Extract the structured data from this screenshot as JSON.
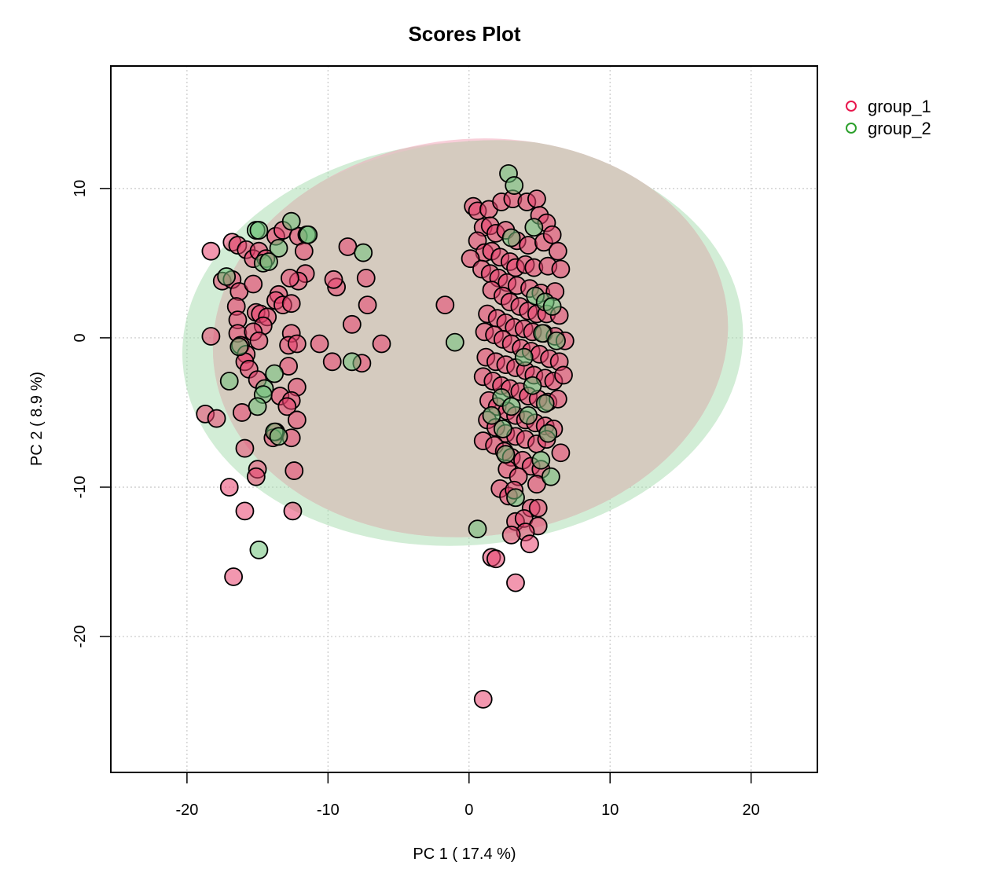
{
  "chart_data": {
    "type": "scatter",
    "title": "Scores Plot",
    "xlabel": "PC 1 ( 17.4 %)",
    "ylabel": "PC 2 ( 8.9 %)",
    "xlim": [
      -25.4,
      24.7
    ],
    "ylim": [
      -29.1,
      18.2
    ],
    "xticks": [
      -20,
      -10,
      0,
      10,
      20
    ],
    "yticks": [
      -20,
      -10,
      0,
      10
    ],
    "xtick_labels": [
      "-20",
      "-10",
      "0",
      "10",
      "20"
    ],
    "ytick_labels": [
      "-20",
      "-10",
      "0",
      "10"
    ],
    "grid": true,
    "legend_position": "top-right-outside",
    "legend": [
      {
        "name": "group_1",
        "color": "#e8174d"
      },
      {
        "name": "group_2",
        "color": "#2ca02c"
      }
    ],
    "confidence_ellipses": [
      {
        "group": "group_1",
        "center": [
          0.1,
          0.0
        ],
        "semi_axes": [
          18.3,
          13.3
        ],
        "rotation_deg": -6,
        "fill": "#f2a0b4"
      },
      {
        "group": "group_2",
        "center": [
          -0.45,
          -0.4
        ],
        "semi_axes": [
          19.9,
          13.5
        ],
        "rotation_deg": -4,
        "fill": "#a6dcae"
      }
    ],
    "series": [
      {
        "name": "group_1",
        "fill": "#e8426e",
        "points": [
          [
            -18.3,
            5.8
          ],
          [
            -16.8,
            6.4
          ],
          [
            -16.4,
            6.2
          ],
          [
            -15.8,
            5.9
          ],
          [
            -15.3,
            5.3
          ],
          [
            -14.9,
            5.8
          ],
          [
            -14.4,
            5.3
          ],
          [
            -13.7,
            6.8
          ],
          [
            -13.2,
            7.2
          ],
          [
            -12.1,
            6.8
          ],
          [
            -11.7,
            5.8
          ],
          [
            -11.6,
            4.3
          ],
          [
            -12.1,
            3.8
          ],
          [
            -12.7,
            4.0
          ],
          [
            -13.5,
            2.9
          ],
          [
            -13.7,
            2.5
          ],
          [
            -13.2,
            2.2
          ],
          [
            -12.6,
            2.3
          ],
          [
            -17.5,
            3.8
          ],
          [
            -16.8,
            3.9
          ],
          [
            -16.3,
            3.1
          ],
          [
            -16.5,
            2.1
          ],
          [
            -16.4,
            1.2
          ],
          [
            -16.4,
            0.3
          ],
          [
            -15.3,
            3.6
          ],
          [
            -15.1,
            1.7
          ],
          [
            -14.8,
            1.6
          ],
          [
            -14.3,
            1.4
          ],
          [
            -14.6,
            0.8
          ],
          [
            -15.3,
            0.4
          ],
          [
            -14.9,
            -0.2
          ],
          [
            -16.2,
            -0.5
          ],
          [
            -15.8,
            -1.1
          ],
          [
            -15.9,
            -1.6
          ],
          [
            -15.6,
            -2.1
          ],
          [
            -15.0,
            -2.8
          ],
          [
            -18.3,
            0.1
          ],
          [
            -12.6,
            0.3
          ],
          [
            -12.8,
            -0.5
          ],
          [
            -12.2,
            -0.4
          ],
          [
            -10.6,
            -0.4
          ],
          [
            -12.8,
            -1.9
          ],
          [
            -9.7,
            -1.6
          ],
          [
            -9.4,
            3.4
          ],
          [
            -9.6,
            3.9
          ],
          [
            -8.6,
            6.1
          ],
          [
            -8.3,
            0.9
          ],
          [
            -7.3,
            4.0
          ],
          [
            -7.2,
            2.2
          ],
          [
            -7.6,
            -1.7
          ],
          [
            -6.2,
            -0.4
          ],
          [
            -1.7,
            2.2
          ],
          [
            -12.2,
            -3.3
          ],
          [
            -13.4,
            -3.9
          ],
          [
            -12.6,
            -4.2
          ],
          [
            -12.9,
            -4.6
          ],
          [
            -12.2,
            -5.5
          ],
          [
            -13.7,
            -6.3
          ],
          [
            -13.9,
            -6.7
          ],
          [
            -12.6,
            -6.7
          ],
          [
            -18.7,
            -5.1
          ],
          [
            -17.9,
            -5.4
          ],
          [
            -16.1,
            -5.0
          ],
          [
            -15.9,
            -7.4
          ],
          [
            -17.0,
            -10.0
          ],
          [
            -15.0,
            -8.8
          ],
          [
            -15.1,
            -9.3
          ],
          [
            -12.4,
            -8.9
          ],
          [
            -15.9,
            -11.6
          ],
          [
            -12.5,
            -11.6
          ],
          [
            -16.7,
            -16.0
          ],
          [
            0.3,
            8.8
          ],
          [
            0.6,
            8.5
          ],
          [
            1.4,
            8.6
          ],
          [
            2.3,
            9.1
          ],
          [
            3.1,
            9.3
          ],
          [
            4.1,
            9.1
          ],
          [
            4.8,
            9.3
          ],
          [
            5.0,
            8.2
          ],
          [
            5.5,
            7.7
          ],
          [
            1.0,
            7.4
          ],
          [
            1.5,
            7.5
          ],
          [
            1.9,
            7.0
          ],
          [
            2.6,
            7.2
          ],
          [
            3.4,
            6.5
          ],
          [
            4.2,
            6.2
          ],
          [
            5.3,
            6.4
          ],
          [
            5.9,
            6.9
          ],
          [
            6.3,
            5.8
          ],
          [
            0.6,
            6.5
          ],
          [
            1.1,
            5.7
          ],
          [
            1.6,
            5.8
          ],
          [
            2.2,
            5.4
          ],
          [
            2.9,
            5.1
          ],
          [
            3.3,
            4.7
          ],
          [
            4.0,
            4.9
          ],
          [
            4.6,
            4.7
          ],
          [
            5.6,
            4.8
          ],
          [
            6.5,
            4.6
          ],
          [
            0.1,
            5.3
          ],
          [
            0.9,
            4.6
          ],
          [
            1.5,
            4.3
          ],
          [
            2.1,
            4.0
          ],
          [
            2.7,
            3.7
          ],
          [
            3.4,
            3.5
          ],
          [
            4.3,
            3.3
          ],
          [
            5.1,
            3.0
          ],
          [
            6.1,
            3.1
          ],
          [
            1.6,
            3.2
          ],
          [
            2.4,
            2.8
          ],
          [
            2.9,
            2.4
          ],
          [
            3.6,
            2.1
          ],
          [
            4.2,
            1.8
          ],
          [
            4.8,
            1.6
          ],
          [
            5.5,
            1.6
          ],
          [
            6.4,
            1.5
          ],
          [
            1.3,
            1.6
          ],
          [
            2.0,
            1.3
          ],
          [
            2.6,
            1.0
          ],
          [
            3.2,
            0.7
          ],
          [
            3.9,
            0.6
          ],
          [
            4.5,
            0.4
          ],
          [
            5.3,
            0.3
          ],
          [
            6.1,
            0.1
          ],
          [
            6.8,
            -0.2
          ],
          [
            1.1,
            0.4
          ],
          [
            1.8,
            0.2
          ],
          [
            2.4,
            -0.1
          ],
          [
            3.0,
            -0.4
          ],
          [
            3.7,
            -0.7
          ],
          [
            4.4,
            -0.9
          ],
          [
            5.0,
            -1.1
          ],
          [
            5.7,
            -1.4
          ],
          [
            6.4,
            -1.6
          ],
          [
            1.2,
            -1.3
          ],
          [
            1.9,
            -1.6
          ],
          [
            2.6,
            -1.8
          ],
          [
            3.3,
            -2.0
          ],
          [
            4.0,
            -2.2
          ],
          [
            4.6,
            -2.5
          ],
          [
            5.4,
            -2.7
          ],
          [
            6.0,
            -2.9
          ],
          [
            6.7,
            -2.5
          ],
          [
            1.0,
            -2.6
          ],
          [
            1.7,
            -2.9
          ],
          [
            2.3,
            -3.2
          ],
          [
            2.9,
            -3.4
          ],
          [
            3.6,
            -3.6
          ],
          [
            4.2,
            -3.9
          ],
          [
            4.9,
            -4.1
          ],
          [
            5.6,
            -4.3
          ],
          [
            6.3,
            -4.1
          ],
          [
            1.4,
            -4.2
          ],
          [
            2.0,
            -4.6
          ],
          [
            2.7,
            -4.9
          ],
          [
            3.3,
            -5.2
          ],
          [
            4.0,
            -5.5
          ],
          [
            4.7,
            -5.7
          ],
          [
            5.4,
            -5.9
          ],
          [
            6.0,
            -6.1
          ],
          [
            1.3,
            -5.5
          ],
          [
            1.9,
            -6.0
          ],
          [
            2.6,
            -6.4
          ],
          [
            3.3,
            -6.6
          ],
          [
            4.0,
            -6.8
          ],
          [
            4.8,
            -7.1
          ],
          [
            5.5,
            -6.8
          ],
          [
            6.5,
            -7.7
          ],
          [
            1.0,
            -6.9
          ],
          [
            1.8,
            -7.2
          ],
          [
            2.5,
            -7.6
          ],
          [
            3.0,
            -8.0
          ],
          [
            3.8,
            -8.2
          ],
          [
            4.4,
            -8.6
          ],
          [
            5.1,
            -8.8
          ],
          [
            2.7,
            -8.8
          ],
          [
            3.5,
            -9.3
          ],
          [
            4.8,
            -9.8
          ],
          [
            2.2,
            -10.1
          ],
          [
            2.8,
            -10.6
          ],
          [
            3.2,
            -10.2
          ],
          [
            4.4,
            -11.4
          ],
          [
            4.9,
            -11.4
          ],
          [
            3.3,
            -12.3
          ],
          [
            3.9,
            -12.1
          ],
          [
            4.9,
            -12.6
          ],
          [
            4.0,
            -13.0
          ],
          [
            3.0,
            -13.2
          ],
          [
            4.3,
            -13.8
          ],
          [
            1.6,
            -14.7
          ],
          [
            1.9,
            -14.8
          ],
          [
            3.3,
            -16.4
          ],
          [
            1.0,
            -24.2
          ]
        ]
      },
      {
        "name": "group_2",
        "fill": "#6fc27a",
        "points": [
          [
            -15.1,
            7.2
          ],
          [
            -14.9,
            7.2
          ],
          [
            -12.6,
            7.8
          ],
          [
            -11.5,
            6.9
          ],
          [
            -11.4,
            6.9
          ],
          [
            -13.5,
            6.0
          ],
          [
            -14.6,
            5.0
          ],
          [
            -14.2,
            5.1
          ],
          [
            -17.2,
            4.1
          ],
          [
            -7.5,
            5.7
          ],
          [
            -16.3,
            -0.6
          ],
          [
            -17.0,
            -2.9
          ],
          [
            -14.5,
            -3.4
          ],
          [
            -14.6,
            -3.8
          ],
          [
            -13.8,
            -2.4
          ],
          [
            -15.0,
            -4.6
          ],
          [
            -13.8,
            -6.3
          ],
          [
            -13.5,
            -6.6
          ],
          [
            -8.3,
            -1.6
          ],
          [
            -1.0,
            -0.3
          ],
          [
            -14.9,
            -14.2
          ],
          [
            2.8,
            11.0
          ],
          [
            3.2,
            10.2
          ],
          [
            4.6,
            7.4
          ],
          [
            3.0,
            6.7
          ],
          [
            4.7,
            2.8
          ],
          [
            5.4,
            2.4
          ],
          [
            5.9,
            2.1
          ],
          [
            5.2,
            0.3
          ],
          [
            6.2,
            -0.2
          ],
          [
            3.9,
            -1.3
          ],
          [
            4.5,
            -3.2
          ],
          [
            2.3,
            -4.0
          ],
          [
            3.0,
            -4.6
          ],
          [
            5.4,
            -4.4
          ],
          [
            4.2,
            -5.2
          ],
          [
            1.6,
            -5.2
          ],
          [
            5.6,
            -6.4
          ],
          [
            2.4,
            -6.1
          ],
          [
            2.6,
            -7.8
          ],
          [
            5.1,
            -8.2
          ],
          [
            5.8,
            -9.3
          ],
          [
            3.3,
            -10.7
          ],
          [
            0.6,
            -12.8
          ]
        ]
      }
    ]
  }
}
